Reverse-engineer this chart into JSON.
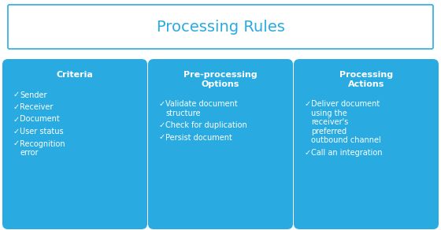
{
  "title": "Processing Rules",
  "title_color": "#29ABE2",
  "title_fontsize": 14,
  "box_color": "#29ABE2",
  "header_border_color": "#29ABE2",
  "bg_color": "#ffffff",
  "text_color": "#ffffff",
  "cards": [
    {
      "title": "Criteria",
      "title_lines": 1,
      "items": [
        "Sender",
        "Receiver",
        "Document",
        "User status",
        "Recognition\nerror"
      ]
    },
    {
      "title": "Pre-processing\nOptions",
      "title_lines": 2,
      "items": [
        "Validate document\nstructure",
        "Check for duplication",
        "Persist document"
      ]
    },
    {
      "title": "Processing\nActions",
      "title_lines": 2,
      "items": [
        "Deliver document\nusing the\nreceiver's\npreferred\noutbound channel",
        "Call an integration"
      ]
    }
  ],
  "fig_width": 5.6,
  "fig_height": 2.92,
  "dpi": 100
}
